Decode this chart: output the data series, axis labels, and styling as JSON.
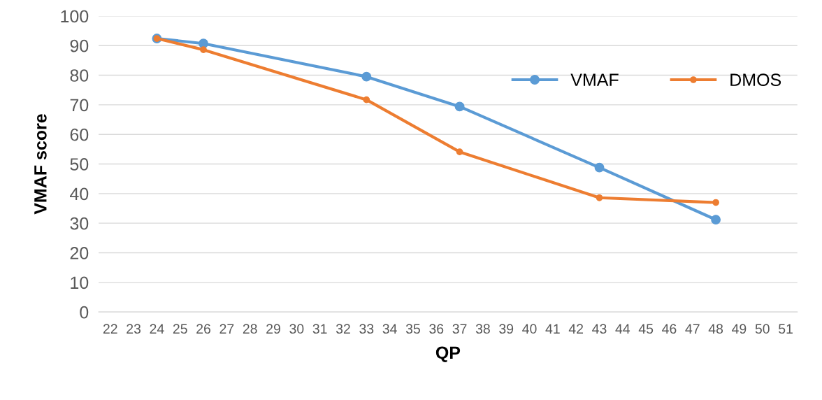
{
  "chart_data": {
    "type": "line",
    "xlabel": "QP",
    "ylabel": "VMAF score",
    "x": [
      24,
      26,
      33,
      37,
      43,
      48
    ],
    "series": [
      {
        "name": "VMAF",
        "color": "#5b9bd5",
        "values": [
          92.4,
          90.7,
          79.5,
          69.4,
          48.8,
          31.2
        ]
      },
      {
        "name": "DMOS",
        "color": "#ed7d31",
        "values": [
          92.4,
          88.6,
          71.7,
          54.1,
          38.6,
          37.0
        ]
      }
    ],
    "xlim": [
      21.5,
      51.5
    ],
    "xticks": [
      22,
      23,
      24,
      25,
      26,
      27,
      28,
      29,
      30,
      31,
      32,
      33,
      34,
      35,
      36,
      37,
      38,
      39,
      40,
      41,
      42,
      43,
      44,
      45,
      46,
      47,
      48,
      49,
      50,
      51
    ],
    "ylim": [
      0,
      100
    ],
    "yticks": [
      0,
      10,
      20,
      30,
      40,
      50,
      60,
      70,
      80,
      90,
      100
    ],
    "grid": "y",
    "legend": "top right",
    "marker": "circle",
    "line_style": "solid"
  }
}
